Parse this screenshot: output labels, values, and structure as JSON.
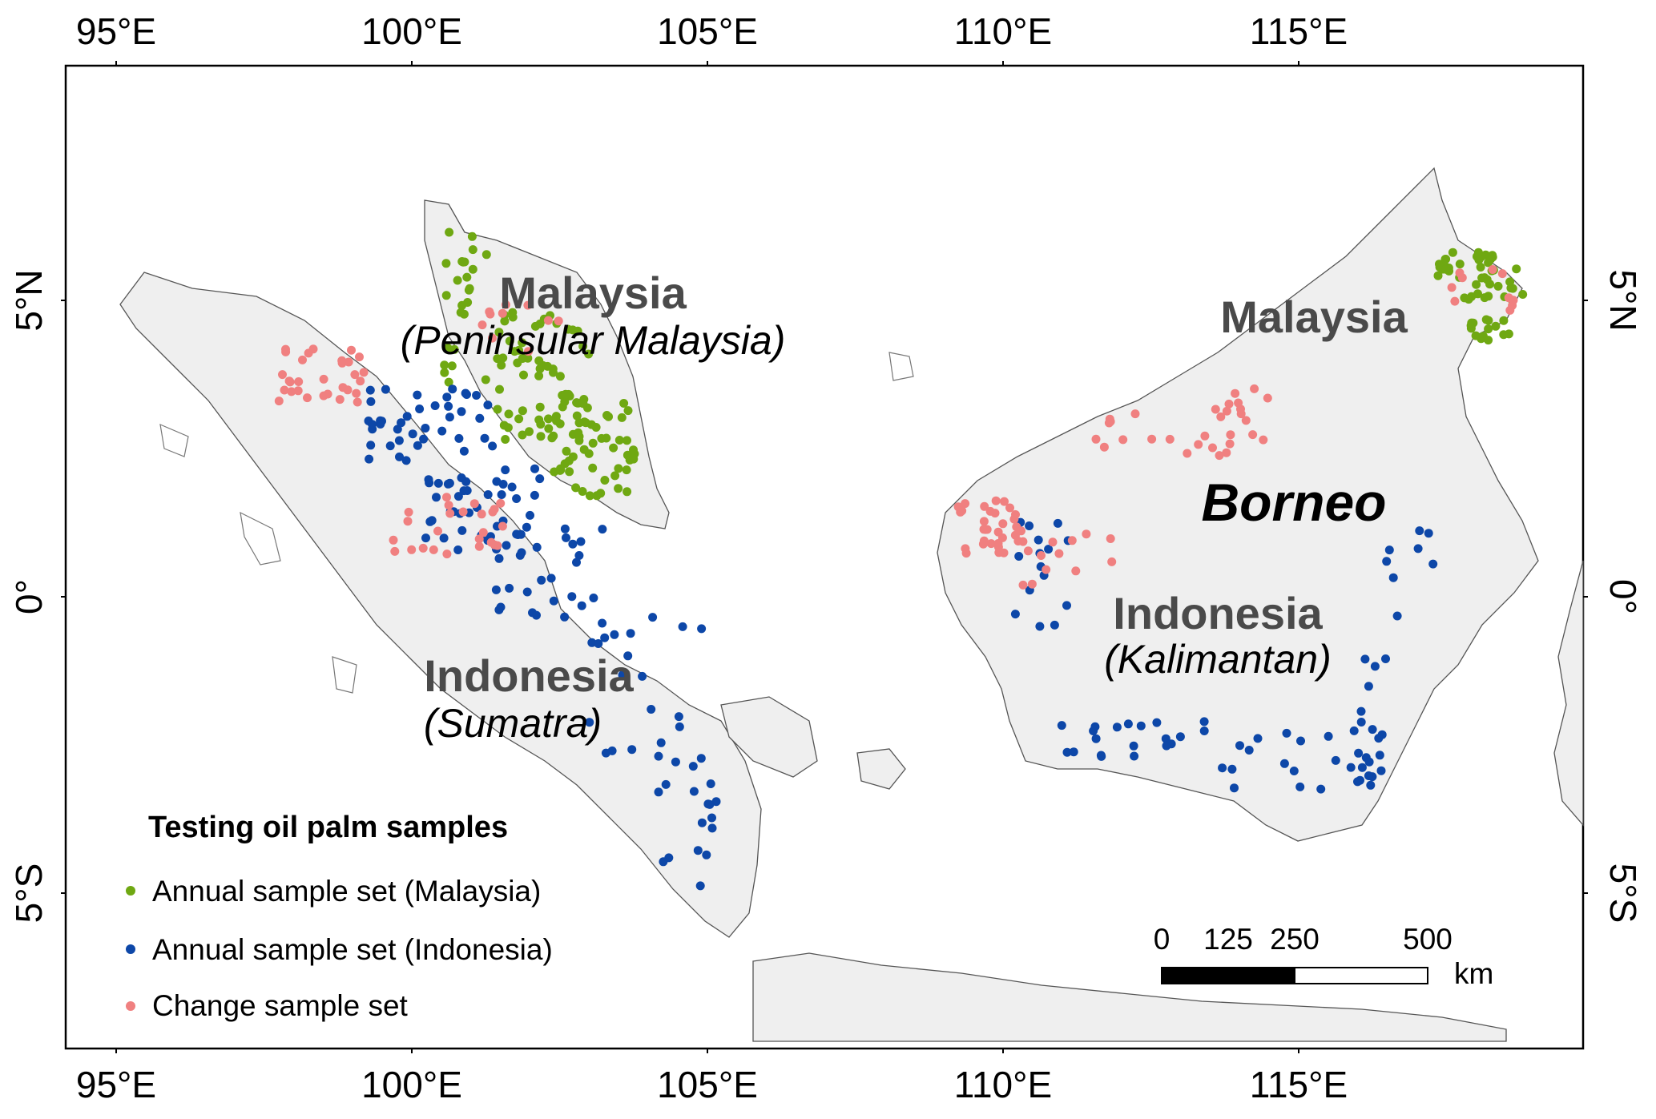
{
  "axes": {
    "lon_ticks": [
      "95°E",
      "100°E",
      "105°E",
      "110°E",
      "115°E"
    ],
    "lat_ticks": [
      "5°N",
      "0°",
      "5°S"
    ]
  },
  "labels": {
    "peninsular_country": "Malaysia",
    "peninsular_region": "(Peninsular Malaysia)",
    "borneo_malaysia": "Malaysia",
    "borneo": "Borneo",
    "kalimantan_country": "Indonesia",
    "kalimantan_region": "(Kalimantan)",
    "sumatra_country": "Indonesia",
    "sumatra_region": "(Sumatra)"
  },
  "legend": {
    "title": "Testing oil palm samples",
    "items": [
      {
        "label": "Annual sample set (Malaysia)",
        "color": "#6fa812"
      },
      {
        "label": "Annual sample set (Indonesia)",
        "color": "#0d47a8"
      },
      {
        "label": "Change sample set",
        "color": "#f08080"
      }
    ]
  },
  "scale_bar": {
    "labels": [
      "0",
      "125",
      "250",
      "500"
    ],
    "unit": "km"
  },
  "colors": {
    "land": "#efefef",
    "malaysia_samples": "#6fa812",
    "indonesia_samples": "#0d47a8",
    "change_samples": "#f08080"
  }
}
